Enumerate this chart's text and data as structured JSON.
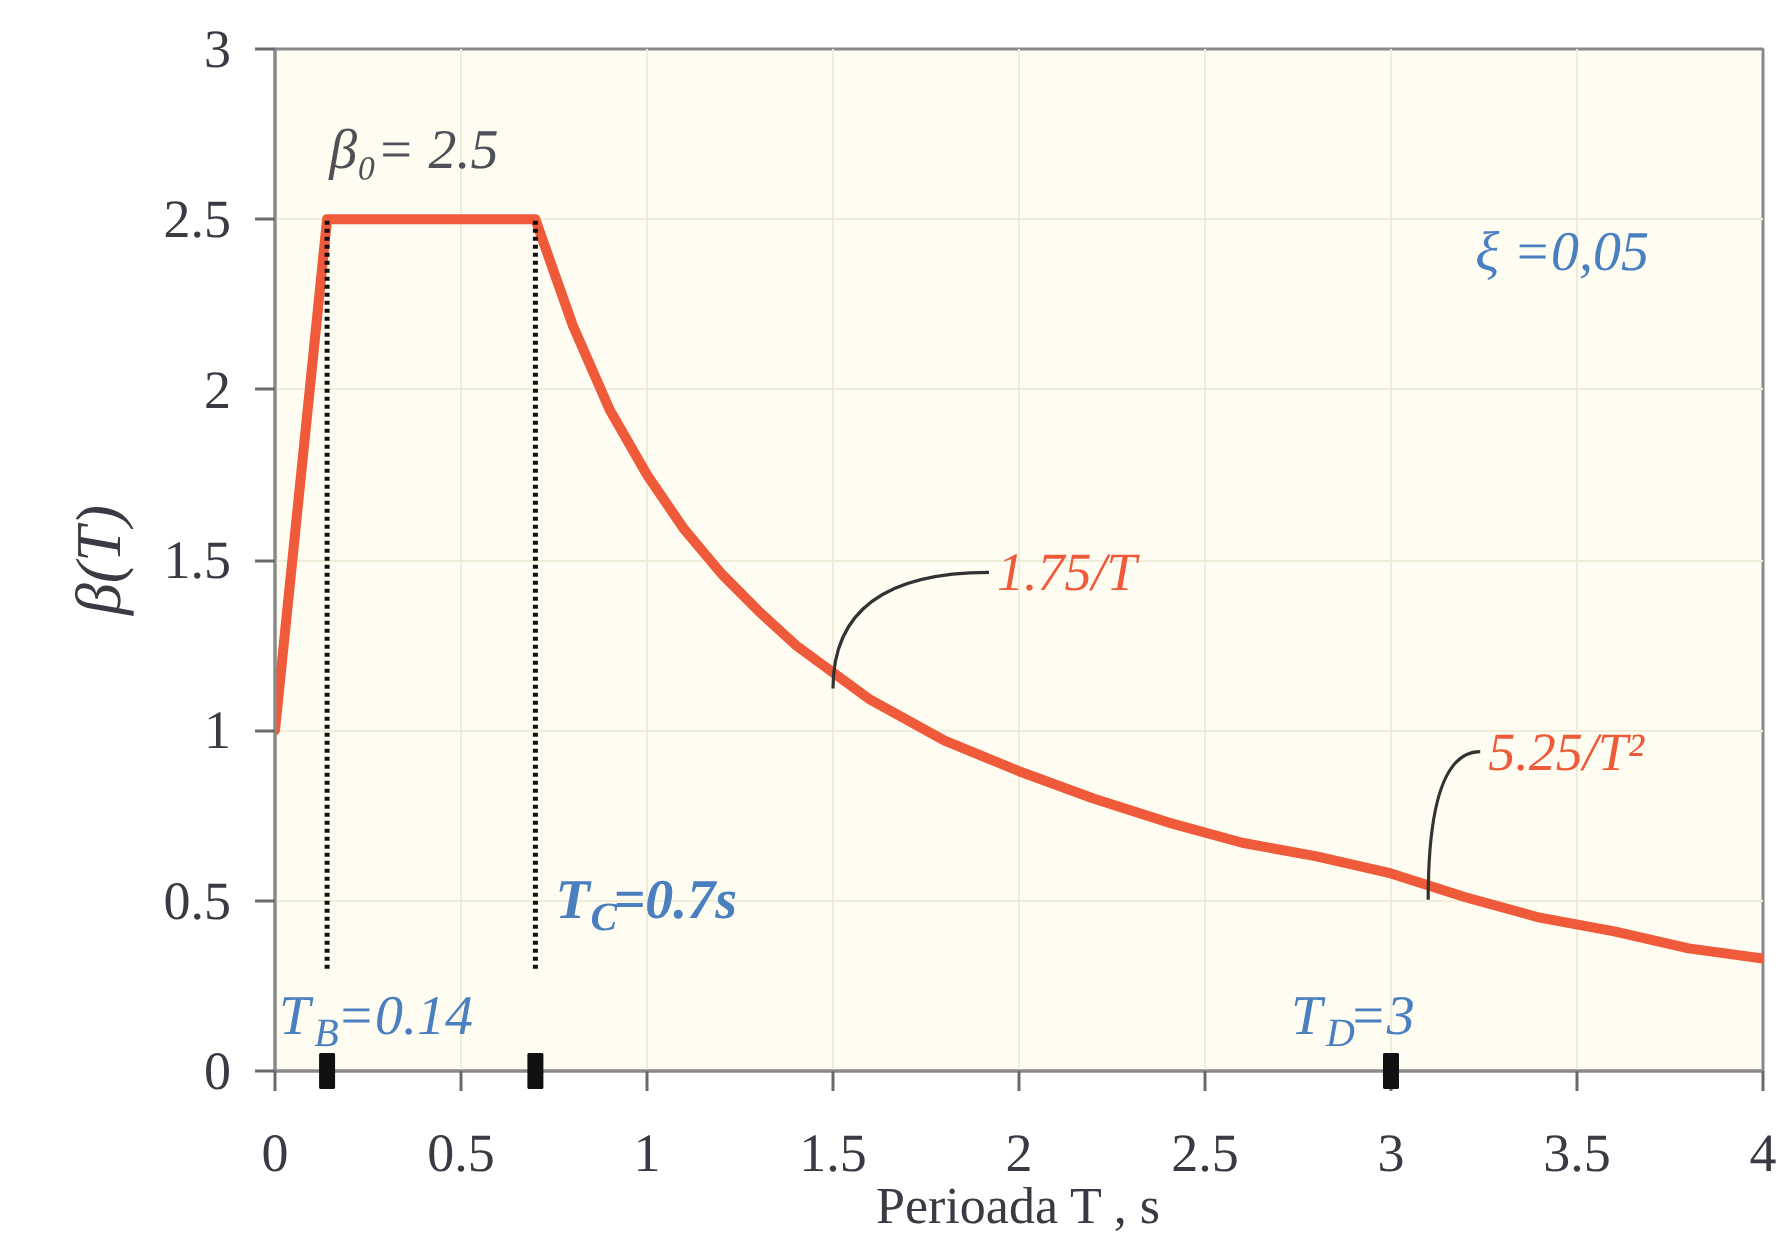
{
  "chart_data": {
    "type": "line",
    "xlabel": "Perioada T , s",
    "ylabel": "β(T)",
    "xlim": [
      0,
      4
    ],
    "xticks": [
      0,
      0.5,
      1,
      1.5,
      2,
      2.5,
      3,
      3.5,
      4
    ],
    "ylim": [
      0,
      3
    ],
    "yticks": [
      0,
      0.5,
      1,
      1.5,
      2,
      2.5,
      3
    ],
    "grid": true,
    "series": [
      {
        "color": "#ef5a3a",
        "x": [
          0,
          0.14,
          0.7,
          0.8,
          0.9,
          1.0,
          1.1,
          1.2,
          1.3,
          1.4,
          1.5,
          1.6,
          1.8,
          2.0,
          2.2,
          2.4,
          2.6,
          2.8,
          3.0,
          3.2,
          3.4,
          3.6,
          3.8,
          4.0
        ],
        "values": [
          1,
          2.5,
          2.5,
          2.19,
          1.94,
          1.75,
          1.59,
          1.46,
          1.35,
          1.25,
          1.17,
          1.09,
          0.97,
          0.88,
          0.8,
          0.73,
          0.67,
          0.63,
          0.58,
          0.51,
          0.45,
          0.41,
          0.36,
          0.33
        ]
      },
      {
        "type": "scatter",
        "marker": "square",
        "color": "#111111",
        "x": [
          0.14,
          0.7,
          3
        ],
        "values": [
          0,
          0,
          0
        ]
      }
    ],
    "ref_lines": [
      {
        "axis": "x",
        "value": 0.14,
        "color": "#111111",
        "line_style": "dotted"
      },
      {
        "axis": "x",
        "value": 0.7,
        "color": "#111111",
        "line_style": "dotted"
      }
    ],
    "annotations": [
      {
        "text": "β₀= 2.5",
        "x": 0.42,
        "y": 2.5
      },
      "ξ =0,05",
      {
        "text": "1.75/T",
        "x": 1.5,
        "y": 1.17
      },
      {
        "text": "5.25/T²",
        "x": 3.1,
        "y": 0.55
      },
      {
        "text": "T$_{B}$=0.14",
        "x": 0.14,
        "y": 0
      },
      {
        "text": "T$_{C}$=0.7s",
        "x": 0.7,
        "y": 0
      },
      {
        "text": "T$_{D}$=3",
        "x": 3,
        "y": 0
      }
    ]
  }
}
